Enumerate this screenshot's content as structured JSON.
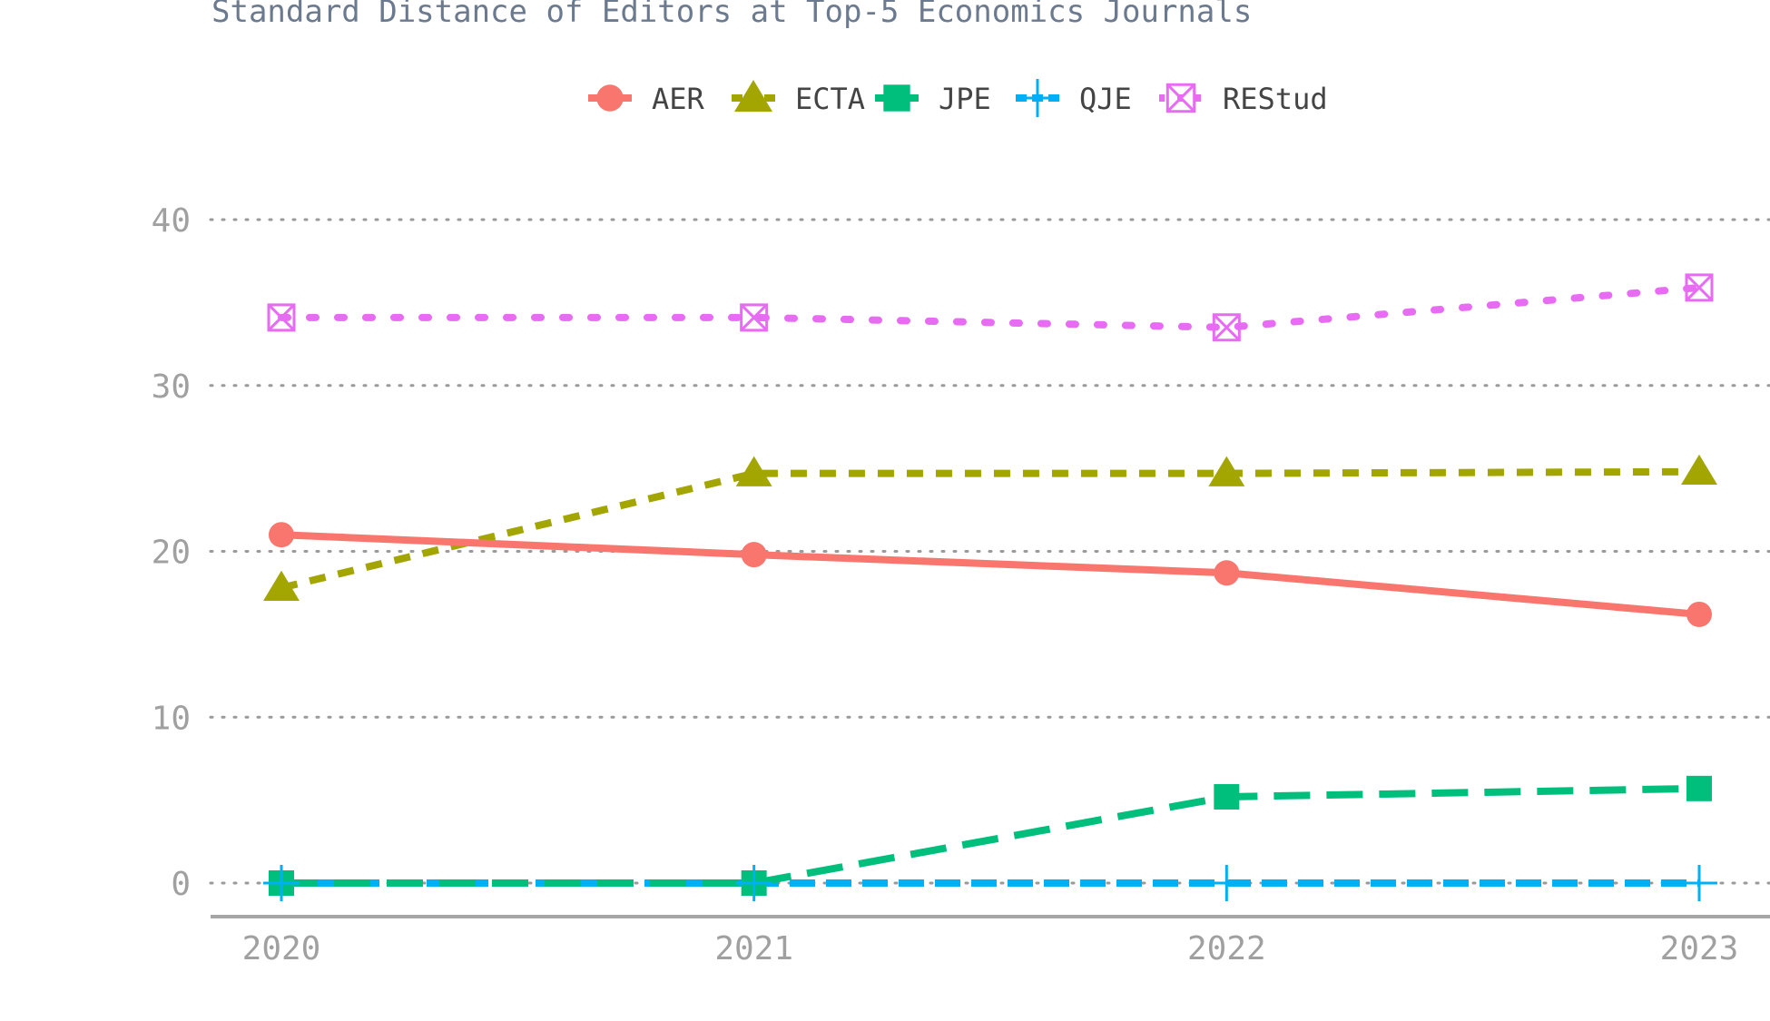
{
  "chart_data": {
    "type": "line",
    "title": "Standard Distance of Editors at Top-5 Economics Journals",
    "xlabel": "",
    "ylabel": "",
    "categories": [
      "2020",
      "2021",
      "2022",
      "2023"
    ],
    "yticks": [
      "0",
      "10",
      "20",
      "30",
      "40"
    ],
    "ylim": [
      -2,
      42
    ],
    "grid": true,
    "legend_position": "top",
    "series": [
      {
        "name": "AER",
        "values": [
          21.0,
          19.8,
          18.7,
          16.2
        ],
        "color": "#f8766d",
        "marker": "circle",
        "line": "solid"
      },
      {
        "name": "ECTA",
        "values": [
          17.8,
          24.7,
          24.7,
          24.8
        ],
        "color": "#a3a500",
        "marker": "triangle",
        "line": "dashed"
      },
      {
        "name": "JPE",
        "values": [
          0.0,
          0.0,
          5.2,
          5.7
        ],
        "color": "#00bf7d",
        "marker": "square",
        "line": "longdash"
      },
      {
        "name": "QJE",
        "values": [
          0.0,
          0.0,
          0.0,
          0.0
        ],
        "color": "#00b0f6",
        "marker": "plus",
        "line": "twodash"
      },
      {
        "name": "REStud",
        "values": [
          34.1,
          34.1,
          33.5,
          35.9
        ],
        "color": "#e76bf3",
        "marker": "boxx",
        "line": "dotted"
      }
    ]
  }
}
